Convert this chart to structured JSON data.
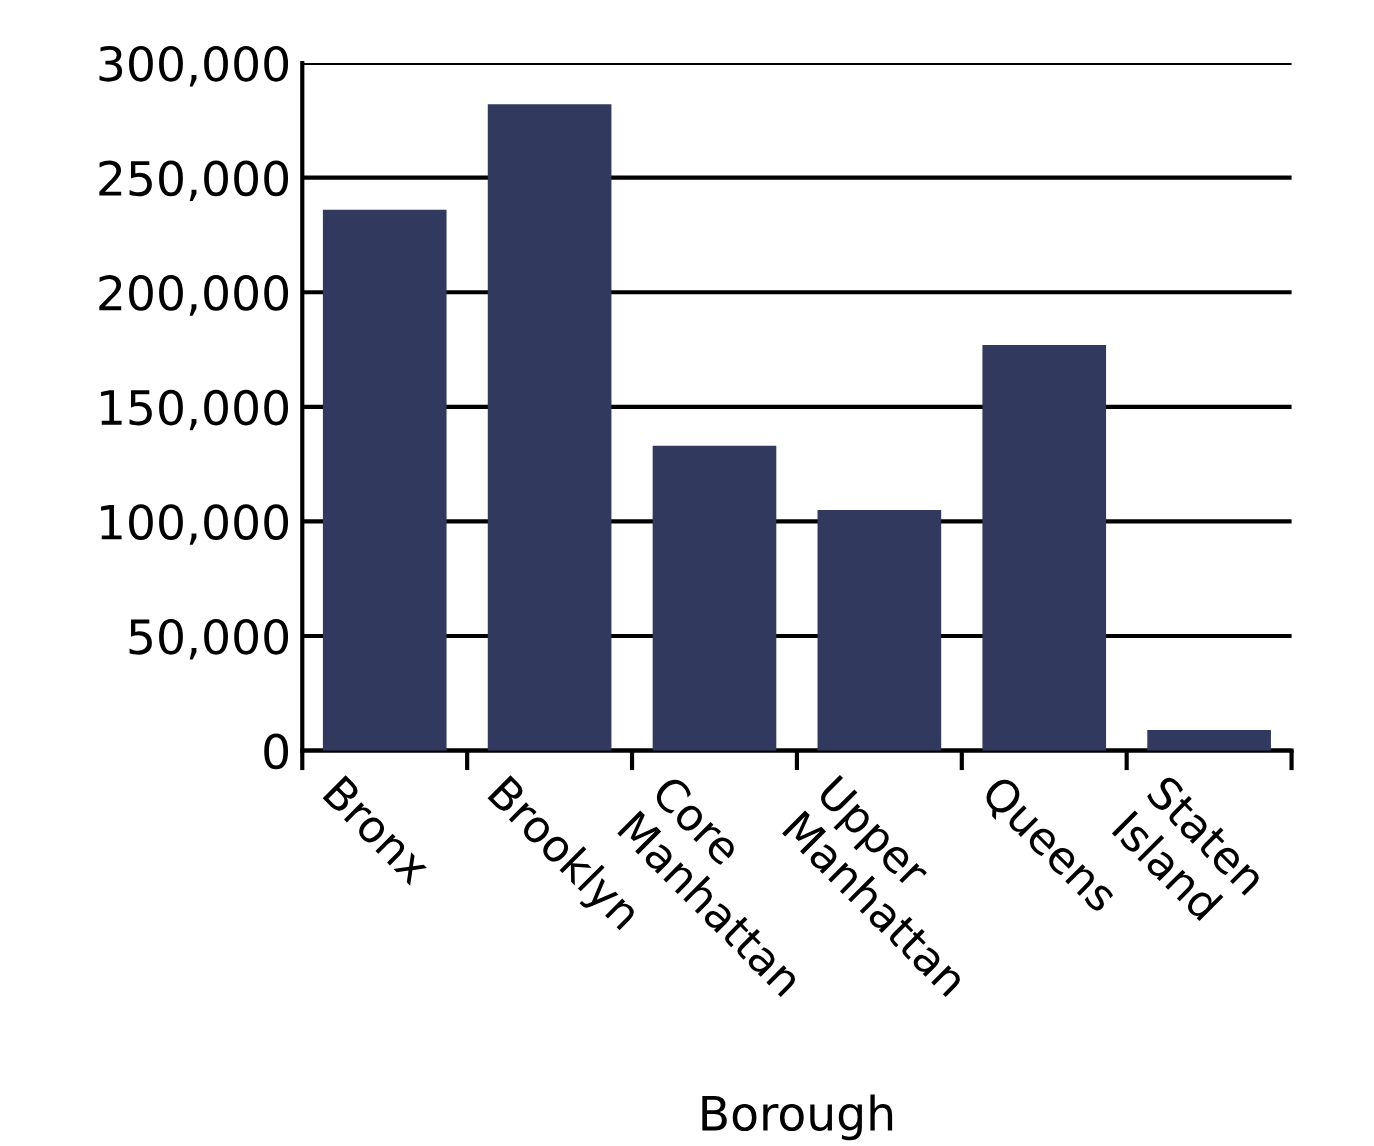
{
  "chart_data": {
    "type": "bar",
    "xlabel": "Borough",
    "categories": [
      "Bronx",
      "Brooklyn",
      "Core\nManhattan",
      "Upper\nManhattan",
      "Queens",
      "Staten\nIsland"
    ],
    "values": [
      236000,
      282000,
      133000,
      105000,
      177000,
      9000
    ],
    "color": "#313a5e",
    "ylim": [
      0,
      300000
    ],
    "yticks": [
      {
        "value": 0,
        "label": "0"
      },
      {
        "value": 50000,
        "label": "50,000"
      },
      {
        "value": 100000,
        "label": "100,000"
      },
      {
        "value": 150000,
        "label": "150,000"
      },
      {
        "value": 200000,
        "label": "200,000"
      },
      {
        "value": 250000,
        "label": "250,000"
      },
      {
        "value": 300000,
        "label": "300,000"
      }
    ],
    "grid": "y"
  }
}
